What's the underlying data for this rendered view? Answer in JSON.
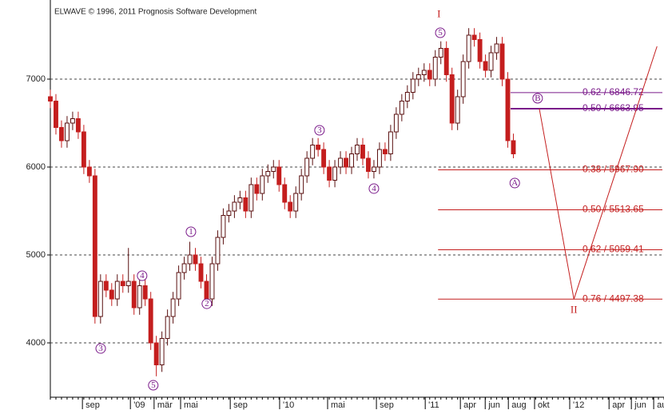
{
  "chart_data": {
    "type": "candlestick",
    "title": "ELWAVE © 1996, 2011 Prognosis Software Development",
    "x": [
      0,
      2,
      4,
      6,
      8,
      10,
      12,
      14,
      16,
      18,
      20,
      22,
      24,
      26,
      28,
      30,
      32,
      34,
      36,
      38,
      40,
      42,
      44,
      46,
      48,
      50,
      52,
      54,
      56,
      58,
      60,
      62,
      64,
      66,
      68,
      70,
      72,
      74,
      76,
      78,
      80,
      82,
      84,
      86,
      88,
      90,
      92,
      94,
      96,
      98,
      100,
      102,
      104,
      106,
      108,
      110,
      112,
      114,
      116,
      118,
      120,
      122,
      124,
      126,
      128,
      130,
      132,
      134,
      136,
      138,
      140,
      142,
      144,
      146,
      148,
      150,
      152,
      154,
      156,
      158,
      160,
      162,
      164,
      166
    ],
    "open": [
      6800,
      6750,
      6450,
      6300,
      6500,
      6550,
      6400,
      6000,
      5900,
      4300,
      4700,
      4600,
      4500,
      4700,
      4650,
      4700,
      4400,
      4650,
      4500,
      4000,
      3750,
      4050,
      4300,
      4500,
      4800,
      4900,
      5000,
      4900,
      4700,
      4500,
      4900,
      5200,
      5450,
      5500,
      5600,
      5650,
      5500,
      5800,
      5700,
      5900,
      5950,
      6000,
      5800,
      5600,
      5500,
      5700,
      5900,
      6100,
      6250,
      6200,
      6000,
      5850,
      6000,
      6100,
      6000,
      6150,
      6250,
      6100,
      5950,
      6000,
      6200,
      6150,
      6400,
      6600,
      6750,
      6850,
      7000,
      7050,
      7100,
      7000,
      7250,
      7350,
      7050,
      6500,
      6800,
      7200,
      7500,
      7450,
      7200,
      7100,
      7300,
      7400,
      7000,
      6300
    ],
    "high": [
      6880,
      6830,
      6530,
      6580,
      6630,
      6630,
      6480,
      6080,
      5980,
      4780,
      4780,
      4680,
      4780,
      4780,
      5080,
      4780,
      4730,
      4730,
      4580,
      4080,
      4130,
      4380,
      4580,
      4880,
      4980,
      5150,
      5080,
      4980,
      4780,
      4980,
      5280,
      5530,
      5580,
      5680,
      5730,
      5730,
      5880,
      5880,
      5980,
      6030,
      6080,
      6080,
      5880,
      5680,
      5780,
      5980,
      6180,
      6330,
      6330,
      6280,
      6080,
      6080,
      6180,
      6180,
      6230,
      6330,
      6330,
      6180,
      6080,
      6280,
      6280,
      6480,
      6680,
      6830,
      6930,
      7080,
      7130,
      7180,
      7180,
      7330,
      7430,
      7430,
      7130,
      6880,
      7280,
      7580,
      7580,
      7530,
      7280,
      7380,
      7480,
      7480,
      7080,
      6380
    ],
    "low": [
      6670,
      6370,
      6220,
      6220,
      6420,
      6320,
      5920,
      5820,
      4220,
      4220,
      4520,
      4420,
      4420,
      4570,
      4570,
      4320,
      4320,
      4420,
      3920,
      3620,
      3670,
      3970,
      4220,
      4420,
      4720,
      4820,
      4820,
      4620,
      4420,
      4420,
      4820,
      5120,
      5370,
      5420,
      5520,
      5420,
      5420,
      5620,
      5620,
      5820,
      5870,
      5720,
      5520,
      5420,
      5420,
      5620,
      5820,
      6020,
      6120,
      5920,
      5770,
      5770,
      5920,
      5920,
      5920,
      6070,
      6020,
      5870,
      5870,
      5920,
      6070,
      6070,
      6320,
      6520,
      6670,
      6770,
      6920,
      6970,
      6920,
      6920,
      7170,
      6970,
      6420,
      6420,
      6720,
      7120,
      7370,
      7120,
      7020,
      7020,
      7220,
      6920,
      6220,
      6100
    ],
    "close": [
      6750,
      6450,
      6300,
      6500,
      6550,
      6400,
      6000,
      5900,
      4300,
      4700,
      4600,
      4500,
      4700,
      4650,
      4700,
      4400,
      4650,
      4500,
      4000,
      3750,
      4050,
      4300,
      4500,
      4800,
      4900,
      5000,
      4900,
      4700,
      4500,
      4900,
      5200,
      5450,
      5500,
      5600,
      5650,
      5500,
      5800,
      5700,
      5900,
      5950,
      6000,
      5800,
      5600,
      5500,
      5700,
      5900,
      6100,
      6250,
      6200,
      6000,
      5850,
      6000,
      6100,
      6000,
      6150,
      6250,
      6100,
      5950,
      6000,
      6200,
      6150,
      6400,
      6600,
      6750,
      6850,
      7000,
      7050,
      7100,
      7000,
      7250,
      7350,
      7050,
      6500,
      6800,
      7200,
      7500,
      7450,
      7200,
      7100,
      7300,
      7400,
      7000,
      6300,
      6150
    ],
    "up_color": "#5a1010",
    "down_color": "#c41e1e",
    "xlim": [
      0,
      220
    ],
    "ylim": [
      3382,
      7900
    ],
    "yticks": [
      4000,
      5000,
      6000,
      7000
    ],
    "grid": true,
    "xticks": [
      {
        "value": 11.5,
        "label": "sep"
      },
      {
        "value": 28.7,
        "label": "'09"
      },
      {
        "value": 37.2,
        "label": "mär"
      },
      {
        "value": 46.7,
        "label": "mai"
      },
      {
        "value": 64.5,
        "label": "sep"
      },
      {
        "value": 82.2,
        "label": "'10"
      },
      {
        "value": 99.4,
        "label": "mai"
      },
      {
        "value": 116.9,
        "label": "sep"
      },
      {
        "value": 134.4,
        "label": "'11"
      },
      {
        "value": 147,
        "label": "apr"
      },
      {
        "value": 155.9,
        "label": "jun"
      },
      {
        "value": 164.2,
        "label": "aug"
      },
      {
        "value": 173.6,
        "label": "okt"
      },
      {
        "value": 186.2,
        "label": "'12"
      },
      {
        "value": 200.3,
        "label": "apr"
      },
      {
        "value": 208.3,
        "label": "jun"
      },
      {
        "value": 216.3,
        "label": "au"
      }
    ],
    "waves": [
      {
        "text": "I",
        "x": 139.3,
        "y": 7736,
        "circled": false,
        "color": "#c41e1e"
      },
      {
        "text": "II",
        "x": 187.7,
        "y": 4373,
        "circled": false,
        "color": "#c41e1e"
      },
      {
        "text": "5",
        "x": 139.8,
        "y": 7527,
        "circled": true,
        "color": "#7a1a8a"
      },
      {
        "text": "B",
        "x": 174.7,
        "y": 6782,
        "circled": true,
        "color": "#7a1a8a"
      },
      {
        "text": "A",
        "x": 166.5,
        "y": 5818,
        "circled": true,
        "color": "#7a1a8a"
      },
      {
        "text": "3",
        "x": 18.05,
        "y": 3936,
        "circled": true,
        "color": "#7a1a8a"
      },
      {
        "text": "4",
        "x": 32.9,
        "y": 4764,
        "circled": true,
        "color": "#7a1a8a"
      },
      {
        "text": "5",
        "x": 36.9,
        "y": 3518,
        "circled": true,
        "color": "#7a1a8a"
      },
      {
        "text": "1",
        "x": 50.4,
        "y": 5264,
        "circled": true,
        "color": "#7a1a8a"
      },
      {
        "text": "2",
        "x": 56.1,
        "y": 4445,
        "circled": true,
        "color": "#7a1a8a"
      },
      {
        "text": "3",
        "x": 96.5,
        "y": 6418,
        "circled": true,
        "color": "#7a1a8a"
      },
      {
        "text": "4",
        "x": 116.0,
        "y": 5755,
        "circled": true,
        "color": "#7a1a8a"
      }
    ],
    "retracements": [
      {
        "label": "0.62 / 6846.72",
        "value": 6846.72,
        "color": "#7a1a8a",
        "from": 165
      },
      {
        "label": "0.50 / 6663.95",
        "value": 6663.95,
        "color": "#7a1a8a",
        "from": 165
      },
      {
        "label": "0.38 / 5967.90",
        "value": 5967.9,
        "color": "#c41e1e",
        "from": 139
      },
      {
        "label": "0.50 / 5513.65",
        "value": 5513.65,
        "color": "#c41e1e",
        "from": 139
      },
      {
        "label": "0.62 / 5059.41",
        "value": 5059.41,
        "color": "#c41e1e",
        "from": 139
      },
      {
        "label": "0.76 / 4497.38",
        "value": 4497.38,
        "color": "#c41e1e",
        "from": 139
      }
    ],
    "projection": {
      "x": [
        175.3,
        187.7,
        217.5
      ],
      "y": [
        6664,
        4497.38,
        7373
      ],
      "color": "#c41e1e"
    }
  }
}
